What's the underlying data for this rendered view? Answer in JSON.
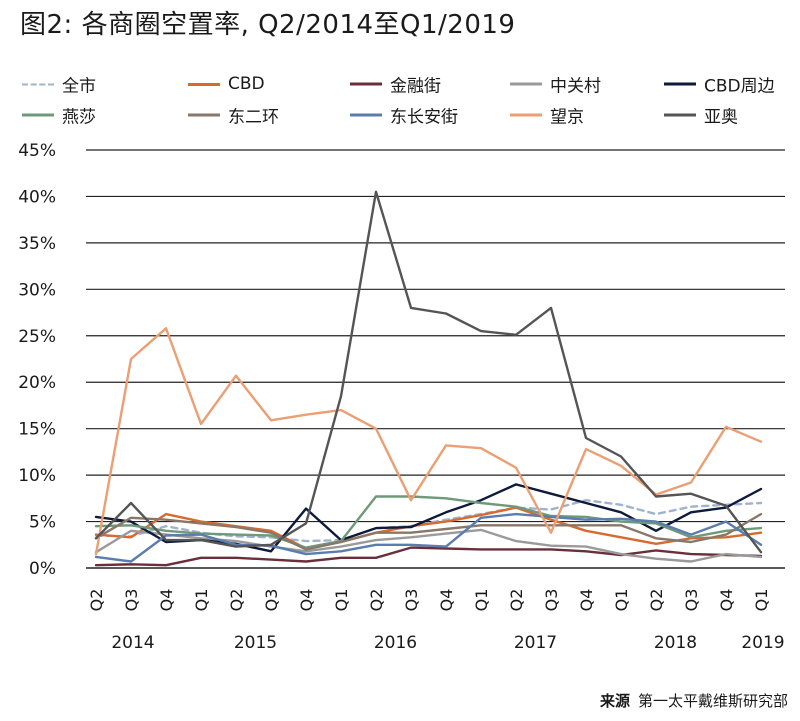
{
  "title": "图2: 各商圈空置率, Q2/2014至Q1/2019",
  "source_label": "来源",
  "source_text": "第一太平戴维斯研究部",
  "chart_data": {
    "type": "line",
    "title": "图2: 各商圈空置率, Q2/2014至Q1/2019",
    "xlabel": "",
    "ylabel": "",
    "ylim": [
      0,
      45
    ],
    "yticks": [
      "0%",
      "5%",
      "10%",
      "15%",
      "20%",
      "25%",
      "30%",
      "35%",
      "40%",
      "45%"
    ],
    "grid": "horizontal",
    "legend_position": "top",
    "categories": [
      "Q2 2014",
      "Q3 2014",
      "Q4 2014",
      "Q1 2015",
      "Q2 2015",
      "Q3 2015",
      "Q4 2015",
      "Q1 2016",
      "Q2 2016",
      "Q3 2016",
      "Q4 2016",
      "Q1 2017",
      "Q2 2017",
      "Q3 2017",
      "Q4 2017",
      "Q1 2018",
      "Q2 2018",
      "Q3 2018",
      "Q4 2018",
      "Q1 2019"
    ],
    "quarter_labels": [
      "Q2",
      "Q3",
      "Q4",
      "Q1",
      "Q2",
      "Q3",
      "Q4",
      "Q1",
      "Q2",
      "Q3",
      "Q4",
      "Q1",
      "Q2",
      "Q3",
      "Q4",
      "Q1",
      "Q2",
      "Q3",
      "Q4",
      "Q1"
    ],
    "year_labels": [
      {
        "label": "2014",
        "index": 1
      },
      {
        "label": "2015",
        "index": 4.5
      },
      {
        "label": "2016",
        "index": 8.5
      },
      {
        "label": "2017",
        "index": 12.5
      },
      {
        "label": "2018",
        "index": 16.5
      },
      {
        "label": "2019",
        "index": 19
      }
    ],
    "series": [
      {
        "name": "全市",
        "color": "#9fb3cf",
        "dashed": true,
        "values": [
          3.5,
          3.4,
          4.5,
          3.8,
          3.4,
          3.3,
          2.9,
          3.0,
          4.3,
          4.5,
          5.2,
          5.8,
          6.5,
          6.3,
          7.3,
          6.8,
          5.8,
          6.6,
          6.8,
          7.0
        ]
      },
      {
        "name": "CBD",
        "color": "#d86a2f",
        "dashed": false,
        "values": [
          3.6,
          3.3,
          5.8,
          5.0,
          4.5,
          4.0,
          2.1,
          2.8,
          3.8,
          4.5,
          5.0,
          5.7,
          6.5,
          5.2,
          4.0,
          3.3,
          2.6,
          3.2,
          3.3,
          3.8
        ]
      },
      {
        "name": "金融街",
        "color": "#6b2f3a",
        "dashed": false,
        "values": [
          0.3,
          0.4,
          0.3,
          1.1,
          1.1,
          0.9,
          0.7,
          1.1,
          1.1,
          2.2,
          2.1,
          2.0,
          2.0,
          2.0,
          1.8,
          1.4,
          1.9,
          1.5,
          1.4,
          1.3
        ]
      },
      {
        "name": "中关村",
        "color": "#9a9a9a",
        "dashed": false,
        "values": [
          1.7,
          4.0,
          3.6,
          3.2,
          2.9,
          2.3,
          1.8,
          2.3,
          3.0,
          3.3,
          3.7,
          4.1,
          2.9,
          2.4,
          2.3,
          1.5,
          1.0,
          0.7,
          1.5,
          1.2
        ]
      },
      {
        "name": "CBD周边",
        "color": "#0e1a3a",
        "dashed": false,
        "values": [
          5.5,
          5.0,
          2.8,
          3.0,
          2.6,
          1.8,
          6.4,
          3.0,
          4.3,
          4.4,
          6.0,
          7.3,
          9.0,
          8.0,
          7.0,
          6.0,
          4.0,
          6.0,
          6.5,
          8.5
        ]
      },
      {
        "name": "燕莎",
        "color": "#6e9a7a",
        "dashed": false,
        "values": [
          4.5,
          4.6,
          4.0,
          3.7,
          3.6,
          3.5,
          2.2,
          2.9,
          7.7,
          7.7,
          7.5,
          7.0,
          6.6,
          5.6,
          5.5,
          5.0,
          4.8,
          3.3,
          4.0,
          4.3
        ]
      },
      {
        "name": "东二环",
        "color": "#8a7768",
        "dashed": false,
        "values": [
          3.2,
          5.4,
          5.2,
          4.8,
          4.4,
          3.8,
          2.0,
          2.8,
          3.8,
          3.8,
          4.2,
          4.6,
          4.6,
          4.6,
          4.6,
          4.6,
          3.2,
          2.8,
          3.6,
          5.8
        ]
      },
      {
        "name": "东长安街",
        "color": "#5b7cae",
        "dashed": false,
        "values": [
          1.2,
          0.7,
          3.5,
          3.6,
          2.5,
          2.4,
          1.5,
          1.8,
          2.5,
          2.5,
          2.3,
          5.4,
          5.8,
          5.5,
          5.2,
          5.3,
          5.0,
          3.6,
          5.0,
          2.5
        ]
      },
      {
        "name": "望京",
        "color": "#eb9f72",
        "dashed": false,
        "values": [
          1.5,
          22.5,
          25.8,
          15.5,
          20.7,
          15.9,
          16.5,
          17.0,
          15.0,
          7.3,
          13.2,
          12.9,
          10.8,
          3.8,
          12.8,
          11.0,
          7.9,
          9.2,
          15.2,
          13.6
        ]
      },
      {
        "name": "亚奥",
        "color": "#555555",
        "dashed": false,
        "values": [
          3.2,
          7.0,
          3.0,
          3.0,
          2.3,
          2.5,
          4.8,
          18.5,
          40.5,
          28.0,
          27.4,
          25.5,
          25.1,
          28.0,
          14.0,
          12.0,
          7.7,
          8.0,
          6.7,
          1.7
        ]
      }
    ]
  }
}
